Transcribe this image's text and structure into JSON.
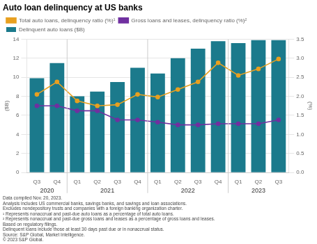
{
  "chart_data": {
    "type": "bar",
    "title": "Auto loan delinquency at US banks",
    "categories": [
      "Q3",
      "Q4",
      "Q1",
      "Q2",
      "Q3",
      "Q4",
      "Q1",
      "Q2",
      "Q3",
      "Q4",
      "Q1",
      "Q2",
      "Q3"
    ],
    "groups": [
      {
        "label": "2020",
        "start": 0,
        "end": 1
      },
      {
        "label": "2021",
        "start": 2,
        "end": 5
      },
      {
        "label": "2022",
        "start": 6,
        "end": 9
      },
      {
        "label": "2023",
        "start": 10,
        "end": 12
      }
    ],
    "series": [
      {
        "name": "Delinquent auto loans ($B)",
        "type": "bar",
        "color": "#1b7a8c",
        "values": [
          9.9,
          11.5,
          8.0,
          8.5,
          9.5,
          11.0,
          10.4,
          12.0,
          13.0,
          13.8,
          13.6,
          13.9,
          13.9
        ]
      },
      {
        "name": "Total auto loans, delinquency ratio (%)¹",
        "type": "line",
        "axis": "y2",
        "color": "#e8a020",
        "marker": "circle",
        "line_style": "solid",
        "values": [
          2.05,
          2.38,
          1.88,
          1.75,
          1.78,
          2.05,
          1.98,
          2.18,
          2.38,
          2.88,
          2.55,
          2.72,
          2.98
        ]
      },
      {
        "name": "Gross loans and leases, delinquency ratio (%)²",
        "type": "line",
        "axis": "y2",
        "color": "#7030a0",
        "marker": "circle",
        "line_style": "solid",
        "values": [
          1.75,
          1.75,
          1.62,
          1.62,
          1.38,
          1.38,
          1.32,
          1.25,
          1.25,
          1.28,
          1.28,
          1.28,
          1.38
        ]
      }
    ],
    "ylabel": "($B)",
    "y2label": "(%)",
    "ylim": [
      0,
      14
    ],
    "yticks": [
      0,
      2,
      4,
      6,
      8,
      10,
      12,
      14
    ],
    "y2lim": [
      0.0,
      3.5
    ],
    "y2ticks": [
      {
        "value": 0.0,
        "label": "0.0"
      },
      0.5,
      {
        "value": 1.0,
        "label": "1.0"
      },
      1.5,
      {
        "value": 2.0,
        "label": "2.0"
      },
      2.5,
      {
        "value": 3.0,
        "label": "3.0"
      },
      3.5
    ],
    "grid": true,
    "legend": "top",
    "footnotes": [
      "Data compiled Nov. 20, 2023.",
      "Analysis includes US commercial banks, savings banks, and savings and loan associations.",
      "Excludes nondepository trusts and companies with a foreign banking organization charter.",
      "¹ Represents nonaccrual and past-due auto loans as a percentage of total auto loans.",
      "² Represents nonaccrual and past-due gross loans and leases as a percentage of gross loans and leases.",
      "Based on regulatory filings.",
      "Delinquent loans include those at least 30 days past due or in nonaccrual status.",
      "Source: S&P Global, Market Intelligence.",
      "© 2023 S&P Global."
    ]
  }
}
